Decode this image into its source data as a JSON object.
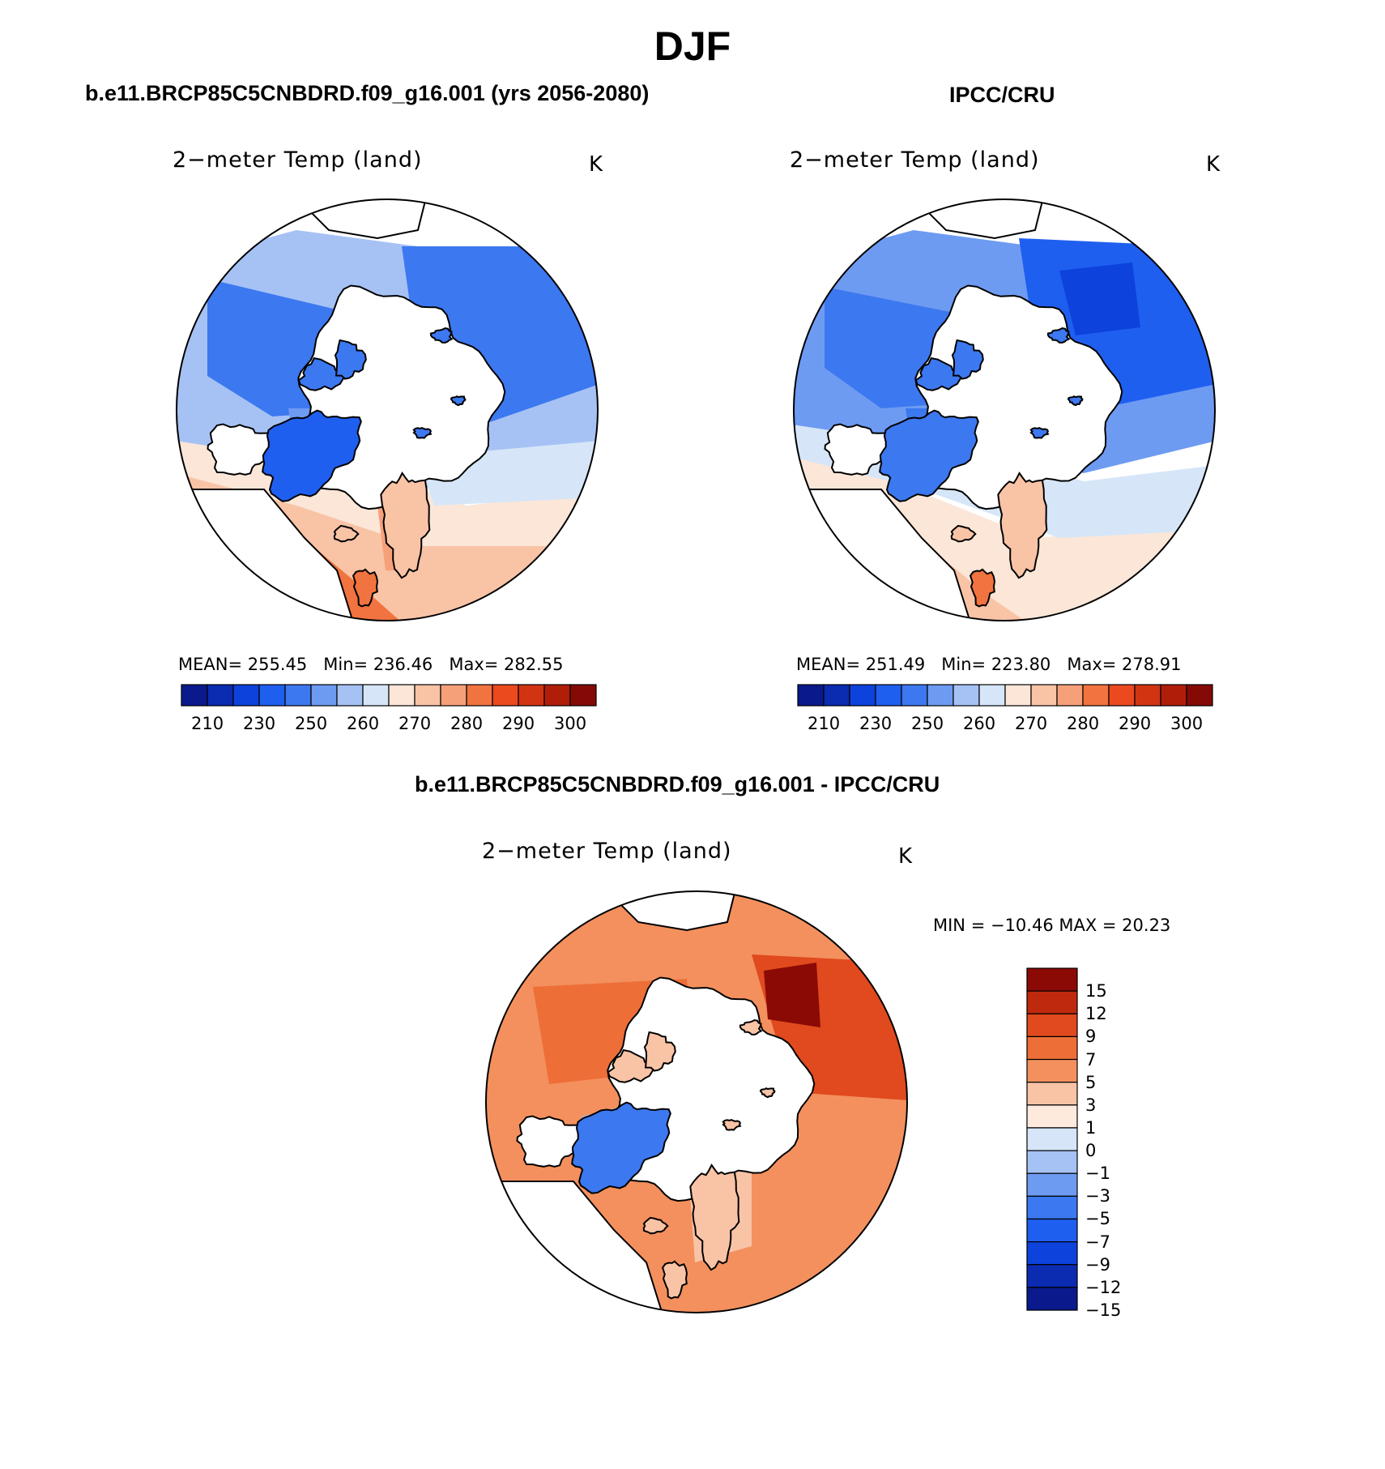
{
  "title": "DJF",
  "colors": {
    "abs_scale": [
      "#0a1a8c",
      "#0b2bb0",
      "#0d42dc",
      "#1f5ff0",
      "#3c78f0",
      "#6e9bf2",
      "#a6c2f5",
      "#d6e6f8",
      "#fbe6d8",
      "#f9c3a6",
      "#f6a07a",
      "#f1733f",
      "#ea4a1e",
      "#d23412",
      "#b01e0a",
      "#850a05"
    ],
    "diff_scale": [
      "#0a1a8c",
      "#0b2bb0",
      "#0d42dc",
      "#1f5ff0",
      "#3c78f0",
      "#6e9bf2",
      "#a6c2f5",
      "#d6e6f8",
      "#fdeadc",
      "#f9c3a6",
      "#f3905e",
      "#ee6e38",
      "#e04a1e",
      "#bf2a0e",
      "#8c0a05"
    ],
    "land_outline": "#000000"
  },
  "panels": [
    {
      "case_title": "b.e11.BRCP85C5CNBDRD.f09_g16.001 (yrs 2056-2080)",
      "plot_title": "2−meter Temp (land)",
      "units": "K",
      "stats": {
        "mean_label": "MEAN=",
        "mean": "255.45",
        "min_label": "Min=",
        "min": "236.46",
        "max_label": "Max=",
        "max": "282.55"
      }
    },
    {
      "case_title": "IPCC/CRU",
      "plot_title": "2−meter Temp (land)",
      "units": "K",
      "stats": {
        "mean_label": "MEAN=",
        "mean": "251.49",
        "min_label": "Min=",
        "min": "223.80",
        "max_label": "Max=",
        "max": "278.91"
      }
    }
  ],
  "abs_colorbar_labels": [
    "210",
    "230",
    "250",
    "260",
    "270",
    "280",
    "290",
    "300"
  ],
  "difference": {
    "case_title": "b.e11.BRCP85C5CNBDRD.f09_g16.001 - IPCC/CRU",
    "plot_title": "2−meter Temp (land)",
    "units": "K",
    "minmax": "MIN = −10.46  MAX =   20.23",
    "colorbar_labels": [
      "15",
      "12",
      "9",
      "7",
      "5",
      "3",
      "1",
      "0",
      "−1",
      "−3",
      "−5",
      "−7",
      "−9",
      "−12",
      "−15"
    ]
  }
}
